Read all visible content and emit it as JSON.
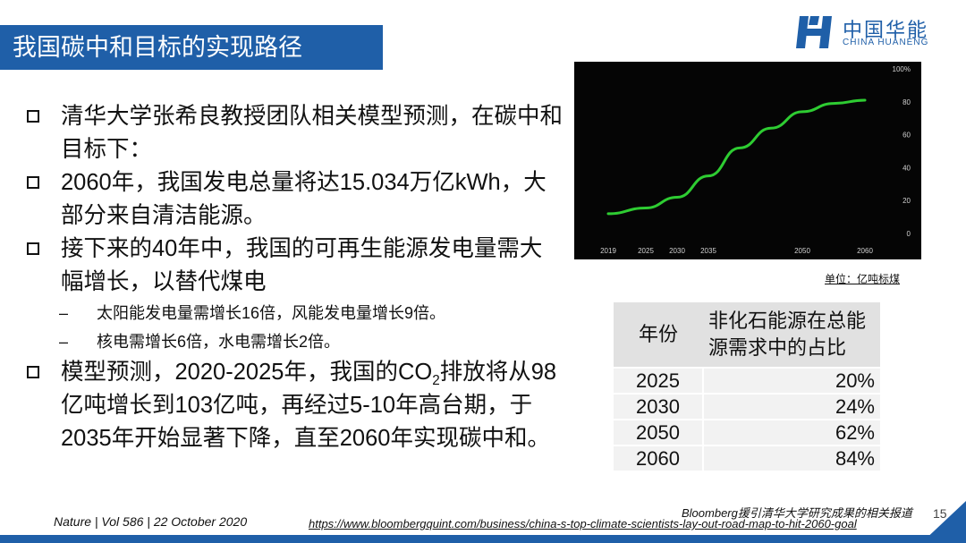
{
  "title": "我国碳中和目标的实现路径",
  "logo": {
    "cn": "中国华能",
    "en": "CHINA HUANENG"
  },
  "bullets": [
    {
      "text": "清华大学张希良教授团队相关模型预测，在碳中和目标下："
    },
    {
      "text": "2060年，我国发电总量将达15.034万亿kWh，大部分来自清洁能源。"
    },
    {
      "text": "接下来的40年中，我国的可再生能源发电量需大幅增长，以替代煤电"
    },
    {
      "text": "模型预测，2020-2025年，我国的CO",
      "sub": "2",
      "tail": "排放将从98亿吨增长到103亿吨，再经过5-10年高台期，于2035年开始显著下降，直至2060年实现碳中和。"
    }
  ],
  "subbullets": [
    {
      "marker": "–",
      "text": "太阳能发电量需增长16倍，风能发电量增长9倍。"
    },
    {
      "marker": "–",
      "text": "核电需增长6倍，水电需增长2倍。"
    }
  ],
  "chart_data": {
    "type": "line",
    "x": [
      2019,
      2025,
      2030,
      2035,
      2040,
      2045,
      2050,
      2055,
      2060
    ],
    "series": [
      {
        "values": [
          12,
          15.5,
          22,
          35,
          52,
          64,
          74,
          79,
          81
        ],
        "color": "#2ecc32"
      }
    ],
    "xticks": [
      "2019",
      "2025",
      "2030",
      "2035",
      "2050",
      "2060"
    ],
    "yticks": [
      "0",
      "20",
      "40",
      "60",
      "80",
      "100%"
    ],
    "ylim": [
      0,
      100
    ],
    "xlim": [
      2019,
      2060
    ],
    "background": "#050505",
    "grid": false
  },
  "unit_note": "单位：亿吨标煤",
  "table": {
    "headers": [
      "年份",
      "非化石能源在总能源需求中的占比"
    ],
    "rows": [
      [
        "2025",
        "20%"
      ],
      [
        "2030",
        "24%"
      ],
      [
        "2050",
        "62%"
      ],
      [
        "2060",
        "84%"
      ]
    ]
  },
  "citations": {
    "nature": "Nature | Vol 586 | 22 October 2020",
    "bloomberg": "Bloomberg援引清华大学研究成果的相关报道",
    "url": "https://www.bloombergquint.com/business/china-s-top-climate-scientists-lay-out-road-map-to-hit-2060-goal"
  },
  "page_number": "15",
  "colors": {
    "brand": "#1f5fa8",
    "line": "#2ecc32"
  }
}
